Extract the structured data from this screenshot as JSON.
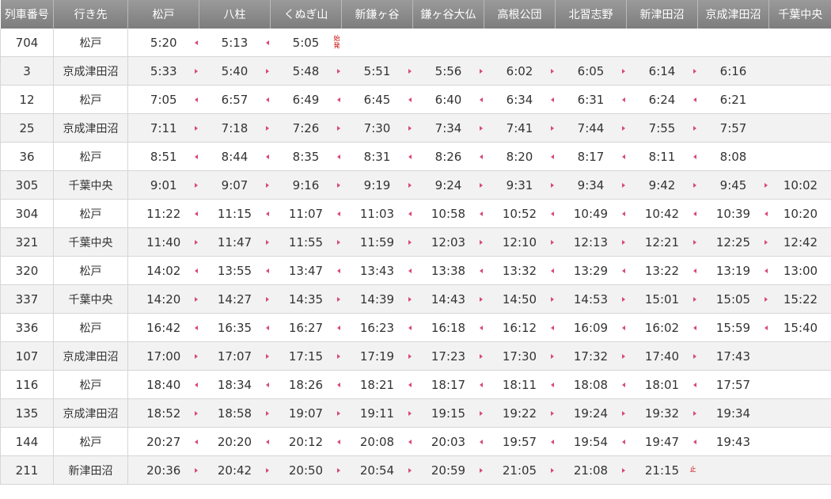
{
  "colors": {
    "header_bg": "#8a8a8a",
    "arrow": "#d9487c",
    "mark": "#cc0000",
    "stripe": "#f2f2f2"
  },
  "headers": [
    "列車番号",
    "行き先",
    "松戸",
    "八柱",
    "くぬぎ山",
    "新鎌ヶ谷",
    "鎌ヶ谷大仏",
    "高根公団",
    "北習志野",
    "新津田沼",
    "京成津田沼",
    "千葉中央"
  ],
  "rows": [
    {
      "num": "704",
      "dest": "松戸",
      "dir": "left",
      "times": [
        "5:20",
        "5:13",
        "5:05",
        "",
        "",
        "",
        "",
        "",
        "",
        ""
      ],
      "mark_index": 2,
      "mark": "始発"
    },
    {
      "num": "3",
      "dest": "京成津田沼",
      "dir": "right",
      "times": [
        "5:33",
        "5:40",
        "5:48",
        "5:51",
        "5:56",
        "6:02",
        "6:05",
        "6:14",
        "6:16",
        ""
      ]
    },
    {
      "num": "12",
      "dest": "松戸",
      "dir": "left",
      "times": [
        "7:05",
        "6:57",
        "6:49",
        "6:45",
        "6:40",
        "6:34",
        "6:31",
        "6:24",
        "6:21",
        ""
      ]
    },
    {
      "num": "25",
      "dest": "京成津田沼",
      "dir": "right",
      "times": [
        "7:11",
        "7:18",
        "7:26",
        "7:30",
        "7:34",
        "7:41",
        "7:44",
        "7:55",
        "7:57",
        ""
      ]
    },
    {
      "num": "36",
      "dest": "松戸",
      "dir": "left",
      "times": [
        "8:51",
        "8:44",
        "8:35",
        "8:31",
        "8:26",
        "8:20",
        "8:17",
        "8:11",
        "8:08",
        ""
      ]
    },
    {
      "num": "305",
      "dest": "千葉中央",
      "dir": "right",
      "times": [
        "9:01",
        "9:07",
        "9:16",
        "9:19",
        "9:24",
        "9:31",
        "9:34",
        "9:42",
        "9:45",
        "10:02"
      ]
    },
    {
      "num": "304",
      "dest": "松戸",
      "dir": "left",
      "times": [
        "11:22",
        "11:15",
        "11:07",
        "11:03",
        "10:58",
        "10:52",
        "10:49",
        "10:42",
        "10:39",
        "10:20"
      ]
    },
    {
      "num": "321",
      "dest": "千葉中央",
      "dir": "right",
      "times": [
        "11:40",
        "11:47",
        "11:55",
        "11:59",
        "12:03",
        "12:10",
        "12:13",
        "12:21",
        "12:25",
        "12:42"
      ]
    },
    {
      "num": "320",
      "dest": "松戸",
      "dir": "left",
      "times": [
        "14:02",
        "13:55",
        "13:47",
        "13:43",
        "13:38",
        "13:32",
        "13:29",
        "13:22",
        "13:19",
        "13:00"
      ]
    },
    {
      "num": "337",
      "dest": "千葉中央",
      "dir": "right",
      "times": [
        "14:20",
        "14:27",
        "14:35",
        "14:39",
        "14:43",
        "14:50",
        "14:53",
        "15:01",
        "15:05",
        "15:22"
      ]
    },
    {
      "num": "336",
      "dest": "松戸",
      "dir": "left",
      "times": [
        "16:42",
        "16:35",
        "16:27",
        "16:23",
        "16:18",
        "16:12",
        "16:09",
        "16:02",
        "15:59",
        "15:40"
      ]
    },
    {
      "num": "107",
      "dest": "京成津田沼",
      "dir": "right",
      "times": [
        "17:00",
        "17:07",
        "17:15",
        "17:19",
        "17:23",
        "17:30",
        "17:32",
        "17:40",
        "17:43",
        ""
      ]
    },
    {
      "num": "116",
      "dest": "松戸",
      "dir": "left",
      "times": [
        "18:40",
        "18:34",
        "18:26",
        "18:21",
        "18:17",
        "18:11",
        "18:08",
        "18:01",
        "17:57",
        ""
      ]
    },
    {
      "num": "135",
      "dest": "京成津田沼",
      "dir": "right",
      "times": [
        "18:52",
        "18:58",
        "19:07",
        "19:11",
        "19:15",
        "19:22",
        "19:24",
        "19:32",
        "19:34",
        ""
      ]
    },
    {
      "num": "144",
      "dest": "松戸",
      "dir": "left",
      "times": [
        "20:27",
        "20:20",
        "20:12",
        "20:08",
        "20:03",
        "19:57",
        "19:54",
        "19:47",
        "19:43",
        ""
      ]
    },
    {
      "num": "211",
      "dest": "新津田沼",
      "dir": "right",
      "times": [
        "20:36",
        "20:42",
        "20:50",
        "20:54",
        "20:59",
        "21:05",
        "21:08",
        "21:15",
        "",
        ""
      ],
      "mark_index": 7,
      "mark": "止"
    }
  ]
}
